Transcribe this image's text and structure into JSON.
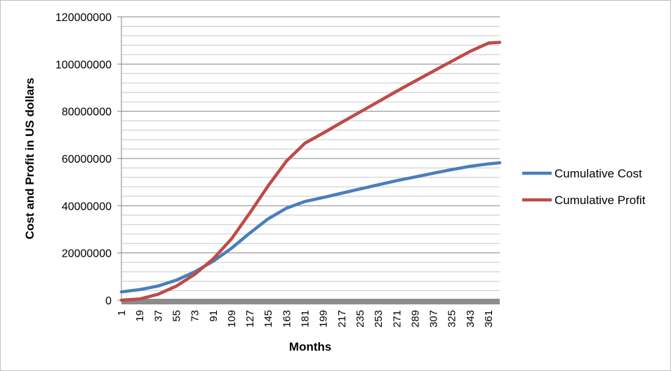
{
  "chart_data": {
    "type": "line",
    "title": "",
    "xlabel": "Months",
    "ylabel": "Cost and Profit in US dollars",
    "ylim": [
      0,
      120000000
    ],
    "y_ticks": [
      0,
      20000000,
      40000000,
      60000000,
      80000000,
      100000000,
      120000000
    ],
    "y_tick_labels": [
      "0",
      "20000000",
      "40000000",
      "60000000",
      "80000000",
      "100000000",
      "120000000"
    ],
    "x_range": [
      1,
      372
    ],
    "x_tick_labels": [
      "1",
      "19",
      "37",
      "55",
      "73",
      "91",
      "109",
      "127",
      "145",
      "163",
      "181",
      "199",
      "217",
      "235",
      "253",
      "271",
      "289",
      "307",
      "325",
      "343",
      "361"
    ],
    "grid": true,
    "legend_position": "right",
    "series": [
      {
        "name": "Cumulative Cost",
        "color": "#4a7ebb",
        "x": [
          1,
          19,
          37,
          55,
          73,
          91,
          109,
          127,
          145,
          163,
          181,
          199,
          217,
          235,
          253,
          271,
          289,
          307,
          325,
          343,
          361,
          372
        ],
        "values": [
          3500000,
          4500000,
          6000000,
          8500000,
          12000000,
          16500000,
          22000000,
          28500000,
          34500000,
          39000000,
          41800000,
          43500000,
          45300000,
          47100000,
          48900000,
          50600000,
          52200000,
          53800000,
          55300000,
          56700000,
          57700000,
          58200000
        ]
      },
      {
        "name": "Cumulative Profit",
        "color": "#be4b48",
        "x": [
          1,
          19,
          37,
          55,
          73,
          91,
          109,
          127,
          145,
          163,
          181,
          199,
          217,
          235,
          253,
          271,
          289,
          307,
          325,
          343,
          361,
          372
        ],
        "values": [
          0,
          500000,
          2500000,
          6000000,
          11000000,
          17500000,
          26000000,
          37000000,
          48500000,
          59000000,
          66500000,
          70800000,
          75300000,
          79700000,
          84100000,
          88500000,
          92800000,
          97000000,
          101200000,
          105400000,
          108900000,
          109200000
        ]
      }
    ]
  }
}
